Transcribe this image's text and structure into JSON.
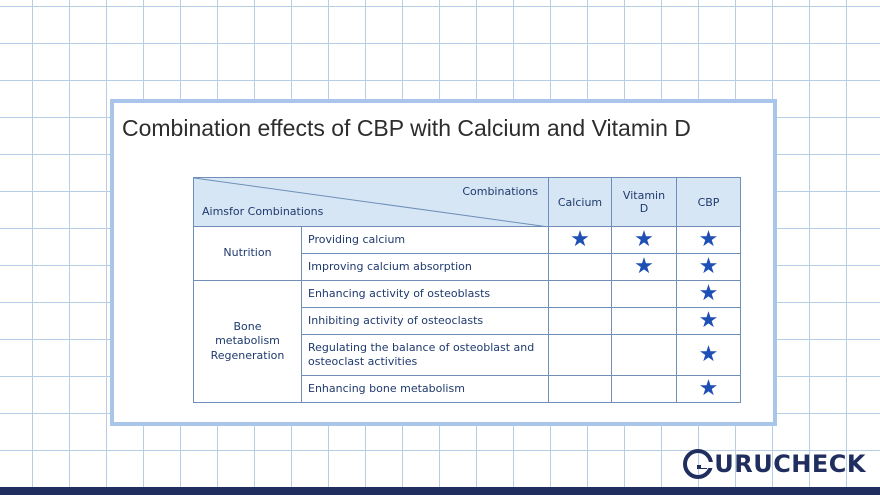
{
  "title": "Combination effects of CBP with Calcium and Vitamin D",
  "table": {
    "header": {
      "combinations": "Combinations",
      "aims": "Aimsfor Combinations",
      "columns": [
        "Calcium",
        "Vitamin D",
        "CBP"
      ]
    },
    "groups": [
      {
        "aim": "Nutrition",
        "rows": [
          {
            "effect": "Providing calcium",
            "calcium": "★",
            "vitamin_d": "★",
            "cbp": "★"
          },
          {
            "effect": "Improving calcium absorption",
            "calcium": "",
            "vitamin_d": "★",
            "cbp": "★"
          }
        ]
      },
      {
        "aim": "Bone metabolism Regeneration",
        "rows": [
          {
            "effect": "Enhancing activity of osteoblasts",
            "calcium": "",
            "vitamin_d": "",
            "cbp": "★"
          },
          {
            "effect": "Inhibiting activity of osteoclasts",
            "calcium": "",
            "vitamin_d": "",
            "cbp": "★"
          },
          {
            "effect": "Regulating the balance of osteoblast and osteoclast activities",
            "calcium": "",
            "vitamin_d": "",
            "cbp": "★"
          },
          {
            "effect": "Enhancing bone metabolism",
            "calcium": "",
            "vitamin_d": "",
            "cbp": "★"
          }
        ]
      }
    ]
  },
  "logo": {
    "text": "URUCHECK",
    "icon": "g-logo-icon"
  },
  "colors": {
    "accent": "#1e4fb5",
    "header_bg": "#d6e6f5",
    "frame": "#a9c6ea",
    "brand": "#1f2e5e"
  }
}
